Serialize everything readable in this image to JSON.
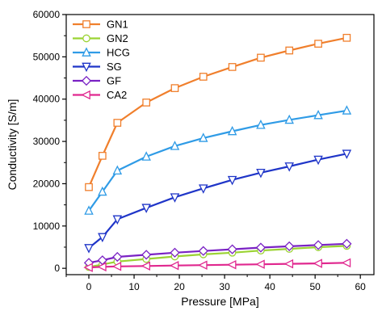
{
  "chart_data": {
    "type": "line",
    "xlabel": "Pressure [MPa]",
    "ylabel": "Conductivity [S/m]",
    "xlim": [
      -5,
      63
    ],
    "ylim": [
      -1500,
      60000
    ],
    "xticks": [
      0,
      10,
      20,
      30,
      40,
      50,
      60
    ],
    "yticks": [
      0,
      10000,
      20000,
      30000,
      40000,
      50000,
      60000
    ],
    "xtick_labels": [
      "0",
      "10",
      "20",
      "30",
      "40",
      "50",
      "60"
    ],
    "ytick_labels": [
      "0",
      "10000",
      "20000",
      "30000",
      "40000",
      "50000",
      "60000"
    ],
    "grid": false,
    "legend_position": "top-left",
    "x": [
      0,
      3,
      6.3,
      12.7,
      19,
      25.3,
      31.7,
      38,
      44.3,
      50.7,
      57
    ],
    "series": [
      {
        "name": "GN1",
        "color": "#f07f2c",
        "marker": "square",
        "values": [
          19200,
          26600,
          34400,
          39200,
          42600,
          45300,
          47600,
          49800,
          51500,
          53100,
          54500
        ]
      },
      {
        "name": "GN2",
        "color": "#9bd333",
        "marker": "circle",
        "values": [
          300,
          900,
          1600,
          2200,
          2800,
          3300,
          3700,
          4200,
          4600,
          5000,
          5300
        ]
      },
      {
        "name": "HCG",
        "color": "#2f9be6",
        "marker": "triangle-up",
        "values": [
          13600,
          18100,
          23100,
          26400,
          28900,
          30800,
          32400,
          33900,
          35100,
          36200,
          37300
        ]
      },
      {
        "name": "SG",
        "color": "#1f35c8",
        "marker": "triangle-down",
        "values": [
          4800,
          7400,
          11600,
          14300,
          16800,
          18900,
          20900,
          22600,
          24100,
          25700,
          27100
        ]
      },
      {
        "name": "GF",
        "color": "#7a22c4",
        "marker": "diamond",
        "values": [
          1300,
          1900,
          2700,
          3200,
          3700,
          4100,
          4500,
          4900,
          5200,
          5500,
          5800
        ]
      },
      {
        "name": "CA2",
        "color": "#e0288f",
        "marker": "triangle-left",
        "values": [
          200,
          350,
          450,
          550,
          650,
          750,
          850,
          950,
          1050,
          1150,
          1300
        ]
      }
    ]
  }
}
